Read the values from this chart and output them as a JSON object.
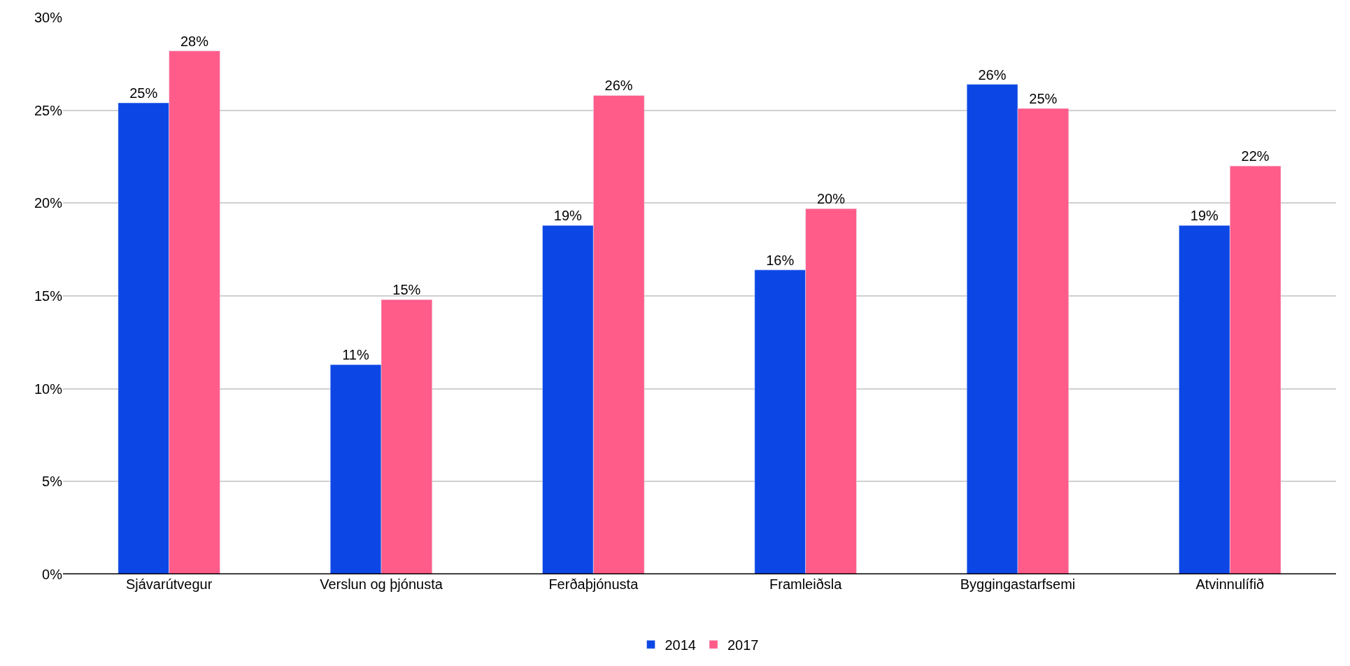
{
  "chart_data": {
    "type": "bar",
    "categories": [
      "Sjávarútvegur",
      "Verslun og þjónusta",
      "Ferðaþjónusta",
      "Framleiðsla",
      "Byggingastarfsemi",
      "Atvinnulífið"
    ],
    "series": [
      {
        "name": "2014",
        "color": "#0c47e6",
        "values": [
          25.4,
          11.3,
          18.8,
          16.4,
          26.4,
          18.8
        ],
        "value_labels": [
          "25%",
          "11%",
          "19%",
          "16%",
          "26%",
          "19%"
        ]
      },
      {
        "name": "2017",
        "color": "#ff5c8a",
        "values": [
          28.2,
          14.8,
          25.8,
          19.7,
          25.1,
          22.0
        ],
        "value_labels": [
          "28%",
          "15%",
          "26%",
          "20%",
          "25%",
          "22%"
        ]
      }
    ],
    "ylim": [
      0,
      30
    ],
    "yticks": [
      {
        "value": 0,
        "label": "0%"
      },
      {
        "value": 5,
        "label": "5%"
      },
      {
        "value": 10,
        "label": "10%"
      },
      {
        "value": 15,
        "label": "15%"
      },
      {
        "value": 20,
        "label": "20%"
      },
      {
        "value": 25,
        "label": "25%"
      },
      {
        "value": 30,
        "label": "30%"
      }
    ],
    "grid": "y",
    "legend": "bottom"
  }
}
